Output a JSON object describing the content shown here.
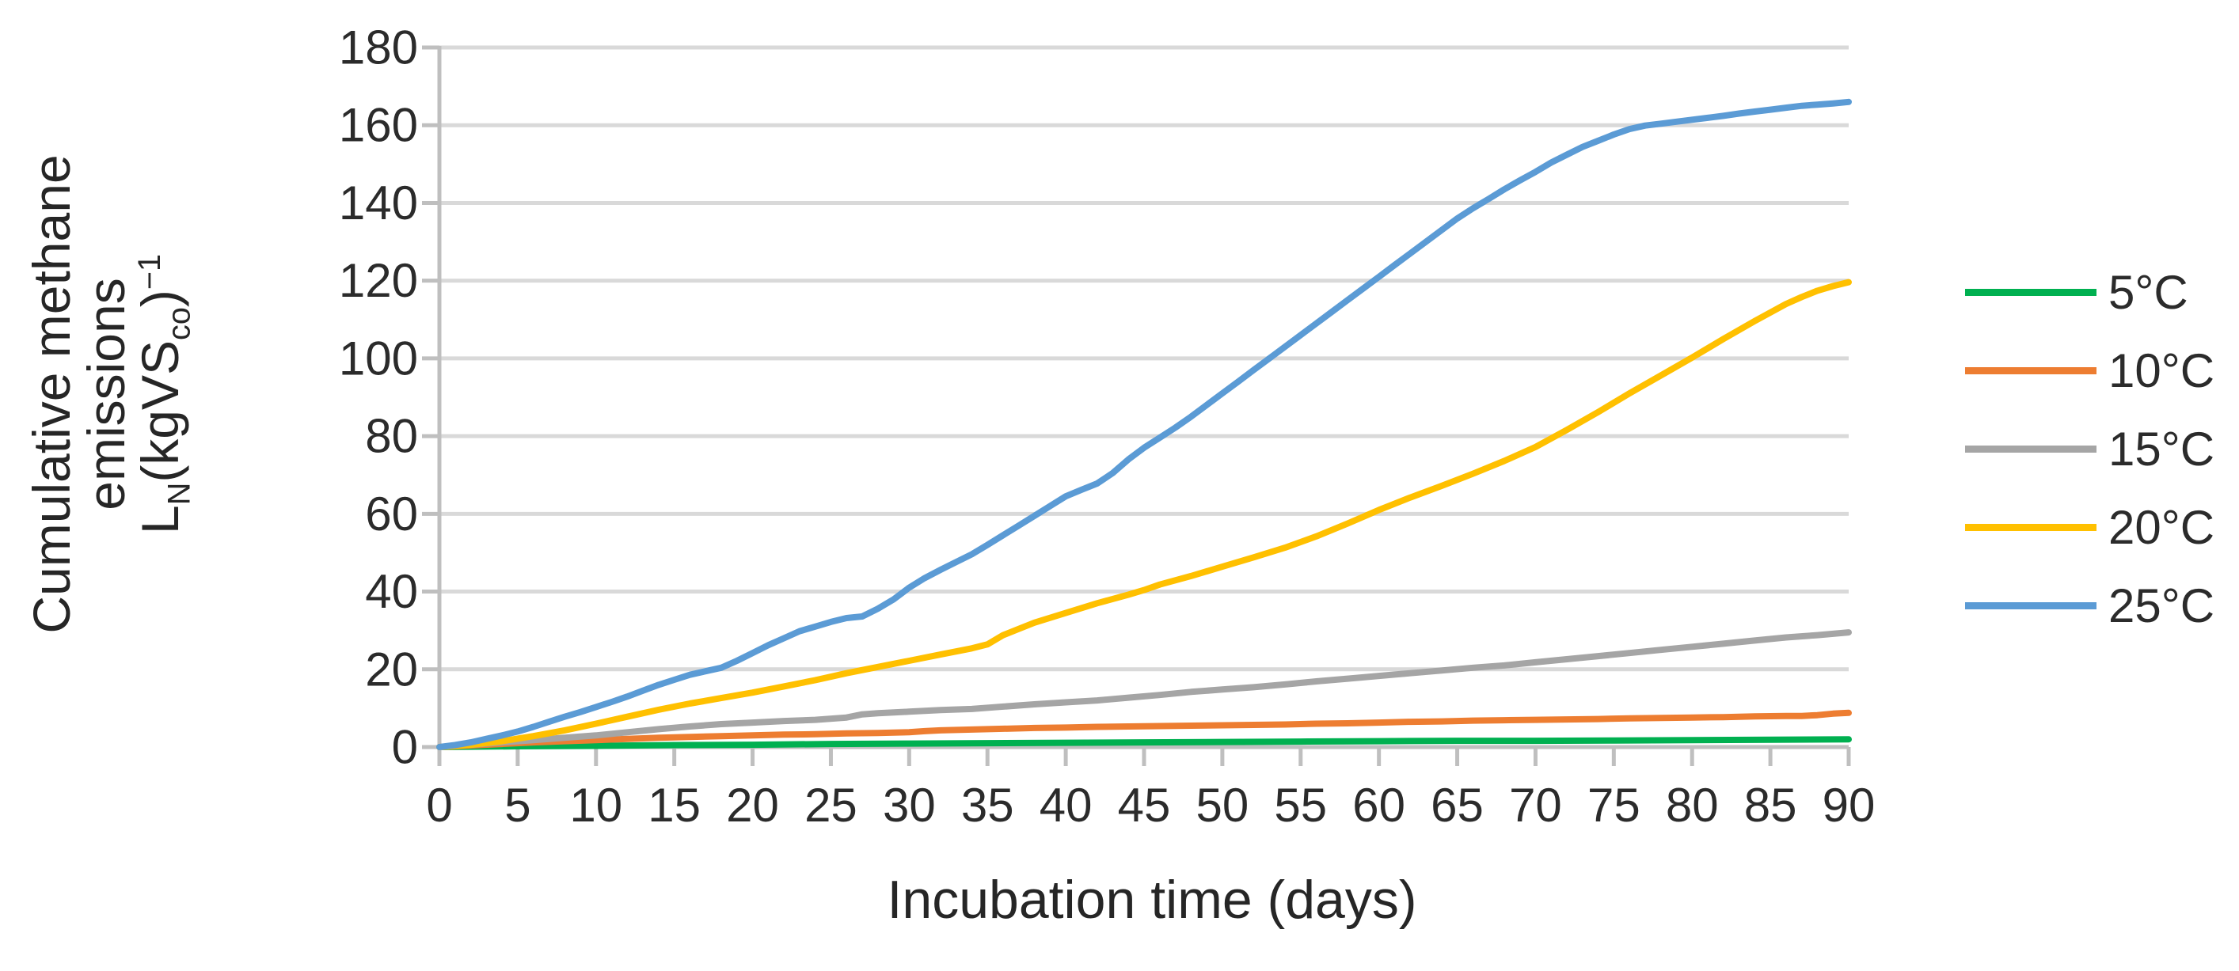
{
  "figure": {
    "x_axis": {
      "title": "Incubation time (days)",
      "tick_labels": [
        "0",
        "5",
        "10",
        "15",
        "20",
        "25",
        "30",
        "35",
        "40",
        "45",
        "50",
        "55",
        "60",
        "65",
        "70",
        "75",
        "80",
        "85",
        "90"
      ]
    },
    "y_axis": {
      "title_line1": "Cumulative methane",
      "title_line2": "emissions",
      "formula": {
        "base": "L",
        "base_sub": "N",
        "open": "(kgVS",
        "open_sub": "co",
        "close": ")",
        "exponent": "−1"
      },
      "tick_labels": [
        "0",
        "20",
        "40",
        "60",
        "80",
        "100",
        "120",
        "140",
        "160",
        "180"
      ]
    },
    "legend": {
      "items": [
        {
          "label": "5°C",
          "color": "#00B050"
        },
        {
          "label": "10°C",
          "color": "#ED7D31"
        },
        {
          "label": "15°C",
          "color": "#A5A5A5"
        },
        {
          "label": "20°C",
          "color": "#FFC000"
        },
        {
          "label": "25°C",
          "color": "#5B9BD5"
        }
      ]
    },
    "colors": {
      "grid": "#D9D9D9",
      "axis": "#BFBFBF",
      "text": "#2b2b2b"
    }
  },
  "chart_data": {
    "type": "line",
    "title": "",
    "xlabel": "Incubation time (days)",
    "ylabel": "Cumulative methane emissions L_N(kgVS_co)^-1",
    "xlim": [
      0,
      90
    ],
    "ylim": [
      0,
      180
    ],
    "x_tick_step": 5,
    "y_tick_step": 20,
    "grid": "horizontal",
    "legend_position": "right",
    "series": [
      {
        "name": "5°C",
        "color": "#00B050",
        "points": [
          [
            0,
            0
          ],
          [
            5,
            0.2
          ],
          [
            10,
            0.3
          ],
          [
            15,
            0.5
          ],
          [
            20,
            0.6
          ],
          [
            25,
            0.8
          ],
          [
            30,
            0.9
          ],
          [
            35,
            1
          ],
          [
            40,
            1.1
          ],
          [
            45,
            1.2
          ],
          [
            50,
            1.3
          ],
          [
            55,
            1.4
          ],
          [
            60,
            1.5
          ],
          [
            65,
            1.6
          ],
          [
            70,
            1.6
          ],
          [
            75,
            1.7
          ],
          [
            80,
            1.8
          ],
          [
            85,
            1.9
          ],
          [
            90,
            2
          ]
        ]
      },
      {
        "name": "10°C",
        "color": "#ED7D31",
        "points": [
          [
            0,
            0
          ],
          [
            2,
            0.4
          ],
          [
            4,
            0.8
          ],
          [
            6,
            1.2
          ],
          [
            8,
            1.5
          ],
          [
            10,
            1.8
          ],
          [
            12,
            2.1
          ],
          [
            14,
            2.4
          ],
          [
            16,
            2.6
          ],
          [
            18,
            2.8
          ],
          [
            20,
            3
          ],
          [
            22,
            3.2
          ],
          [
            24,
            3.3
          ],
          [
            26,
            3.5
          ],
          [
            28,
            3.6
          ],
          [
            30,
            3.8
          ],
          [
            31,
            4.1
          ],
          [
            32,
            4.3
          ],
          [
            34,
            4.5
          ],
          [
            36,
            4.7
          ],
          [
            38,
            4.9
          ],
          [
            40,
            5
          ],
          [
            42,
            5.2
          ],
          [
            44,
            5.3
          ],
          [
            46,
            5.4
          ],
          [
            48,
            5.5
          ],
          [
            50,
            5.6
          ],
          [
            52,
            5.7
          ],
          [
            54,
            5.8
          ],
          [
            56,
            6
          ],
          [
            58,
            6.1
          ],
          [
            60,
            6.3
          ],
          [
            62,
            6.5
          ],
          [
            64,
            6.6
          ],
          [
            66,
            6.8
          ],
          [
            68,
            6.9
          ],
          [
            70,
            7
          ],
          [
            72,
            7.1
          ],
          [
            74,
            7.2
          ],
          [
            76,
            7.4
          ],
          [
            78,
            7.5
          ],
          [
            80,
            7.6
          ],
          [
            82,
            7.7
          ],
          [
            84,
            7.9
          ],
          [
            86,
            8
          ],
          [
            87,
            8
          ],
          [
            88,
            8.2
          ],
          [
            89,
            8.6
          ],
          [
            90,
            8.8
          ]
        ]
      },
      {
        "name": "15°C",
        "color": "#A5A5A5",
        "points": [
          [
            0,
            0
          ],
          [
            2,
            0.6
          ],
          [
            4,
            1.2
          ],
          [
            6,
            1.8
          ],
          [
            8,
            2.4
          ],
          [
            10,
            3
          ],
          [
            12,
            3.8
          ],
          [
            14,
            4.6
          ],
          [
            16,
            5.3
          ],
          [
            18,
            5.9
          ],
          [
            20,
            6.3
          ],
          [
            22,
            6.7
          ],
          [
            24,
            7
          ],
          [
            26,
            7.6
          ],
          [
            27,
            8.4
          ],
          [
            28,
            8.7
          ],
          [
            30,
            9.1
          ],
          [
            32,
            9.5
          ],
          [
            34,
            9.8
          ],
          [
            36,
            10.4
          ],
          [
            38,
            11
          ],
          [
            40,
            11.5
          ],
          [
            42,
            12
          ],
          [
            44,
            12.7
          ],
          [
            46,
            13.4
          ],
          [
            48,
            14.2
          ],
          [
            50,
            14.8
          ],
          [
            52,
            15.4
          ],
          [
            54,
            16.1
          ],
          [
            56,
            16.9
          ],
          [
            58,
            17.6
          ],
          [
            60,
            18.3
          ],
          [
            62,
            19
          ],
          [
            64,
            19.7
          ],
          [
            66,
            20.4
          ],
          [
            68,
            21
          ],
          [
            70,
            21.8
          ],
          [
            72,
            22.6
          ],
          [
            74,
            23.4
          ],
          [
            76,
            24.2
          ],
          [
            78,
            25
          ],
          [
            80,
            25.8
          ],
          [
            82,
            26.6
          ],
          [
            84,
            27.4
          ],
          [
            86,
            28.2
          ],
          [
            88,
            28.8
          ],
          [
            90,
            29.5
          ]
        ]
      },
      {
        "name": "20°C",
        "color": "#FFC000",
        "points": [
          [
            0,
            0
          ],
          [
            2,
            0.6
          ],
          [
            4,
            1.5
          ],
          [
            6,
            2.8
          ],
          [
            8,
            4.3
          ],
          [
            10,
            6
          ],
          [
            12,
            7.8
          ],
          [
            14,
            9.6
          ],
          [
            16,
            11.2
          ],
          [
            18,
            12.6
          ],
          [
            20,
            14
          ],
          [
            22,
            15.6
          ],
          [
            24,
            17.2
          ],
          [
            26,
            19
          ],
          [
            28,
            20.6
          ],
          [
            30,
            22.2
          ],
          [
            32,
            23.8
          ],
          [
            34,
            25.4
          ],
          [
            35,
            26.4
          ],
          [
            36,
            28.8
          ],
          [
            37,
            30.4
          ],
          [
            38,
            32
          ],
          [
            40,
            34.5
          ],
          [
            42,
            37
          ],
          [
            44,
            39.2
          ],
          [
            45,
            40.4
          ],
          [
            46,
            41.8
          ],
          [
            48,
            44
          ],
          [
            50,
            46.4
          ],
          [
            52,
            48.8
          ],
          [
            54,
            51.3
          ],
          [
            56,
            54.2
          ],
          [
            58,
            57.5
          ],
          [
            60,
            61
          ],
          [
            62,
            64.2
          ],
          [
            64,
            67.2
          ],
          [
            66,
            70.3
          ],
          [
            68,
            73.6
          ],
          [
            70,
            77.2
          ],
          [
            72,
            81.6
          ],
          [
            74,
            86.2
          ],
          [
            76,
            91
          ],
          [
            78,
            95.6
          ],
          [
            80,
            100.2
          ],
          [
            82,
            105
          ],
          [
            84,
            109.6
          ],
          [
            86,
            114
          ],
          [
            87,
            115.8
          ],
          [
            88,
            117.4
          ],
          [
            89,
            118.6
          ],
          [
            90,
            119.6
          ]
        ]
      },
      {
        "name": "25°C",
        "color": "#5B9BD5",
        "points": [
          [
            0,
            0
          ],
          [
            1,
            0.5
          ],
          [
            2,
            1.2
          ],
          [
            3,
            2.1
          ],
          [
            4,
            3
          ],
          [
            5,
            4
          ],
          [
            6,
            5.2
          ],
          [
            7,
            6.5
          ],
          [
            8,
            7.8
          ],
          [
            9,
            9
          ],
          [
            10,
            10.3
          ],
          [
            11,
            11.6
          ],
          [
            12,
            13
          ],
          [
            13,
            14.5
          ],
          [
            14,
            16
          ],
          [
            15,
            17.3
          ],
          [
            16,
            18.6
          ],
          [
            17,
            19.5
          ],
          [
            18,
            20.4
          ],
          [
            19,
            22.2
          ],
          [
            20,
            24.2
          ],
          [
            21,
            26.2
          ],
          [
            22,
            28
          ],
          [
            23,
            29.8
          ],
          [
            24,
            31
          ],
          [
            25,
            32.2
          ],
          [
            26,
            33.2
          ],
          [
            27,
            33.6
          ],
          [
            28,
            35.6
          ],
          [
            29,
            38
          ],
          [
            30,
            41
          ],
          [
            31,
            43.5
          ],
          [
            32,
            45.6
          ],
          [
            33,
            47.6
          ],
          [
            34,
            49.6
          ],
          [
            35,
            52
          ],
          [
            36,
            54.5
          ],
          [
            37,
            57
          ],
          [
            38,
            59.5
          ],
          [
            39,
            62
          ],
          [
            40,
            64.5
          ],
          [
            41,
            66.2
          ],
          [
            42,
            67.8
          ],
          [
            43,
            70.5
          ],
          [
            44,
            74
          ],
          [
            45,
            77
          ],
          [
            46,
            79.6
          ],
          [
            47,
            82.2
          ],
          [
            48,
            85
          ],
          [
            49,
            88
          ],
          [
            50,
            91
          ],
          [
            51,
            94
          ],
          [
            52,
            97
          ],
          [
            53,
            100
          ],
          [
            54,
            103
          ],
          [
            55,
            106
          ],
          [
            56,
            109
          ],
          [
            57,
            112
          ],
          [
            58,
            115
          ],
          [
            59,
            118
          ],
          [
            60,
            121
          ],
          [
            61,
            124
          ],
          [
            62,
            127
          ],
          [
            63,
            130
          ],
          [
            64,
            133
          ],
          [
            65,
            136
          ],
          [
            66,
            138.6
          ],
          [
            67,
            141
          ],
          [
            68,
            143.5
          ],
          [
            69,
            145.8
          ],
          [
            70,
            148
          ],
          [
            71,
            150.4
          ],
          [
            72,
            152.4
          ],
          [
            73,
            154.4
          ],
          [
            74,
            156
          ],
          [
            75,
            157.6
          ],
          [
            76,
            159
          ],
          [
            77,
            159.9
          ],
          [
            78,
            160.4
          ],
          [
            79,
            160.9
          ],
          [
            80,
            161.4
          ],
          [
            81,
            161.9
          ],
          [
            82,
            162.4
          ],
          [
            83,
            163
          ],
          [
            84,
            163.5
          ],
          [
            85,
            164
          ],
          [
            86,
            164.5
          ],
          [
            87,
            165
          ],
          [
            88,
            165.3
          ],
          [
            89,
            165.6
          ],
          [
            90,
            166
          ]
        ]
      }
    ]
  }
}
